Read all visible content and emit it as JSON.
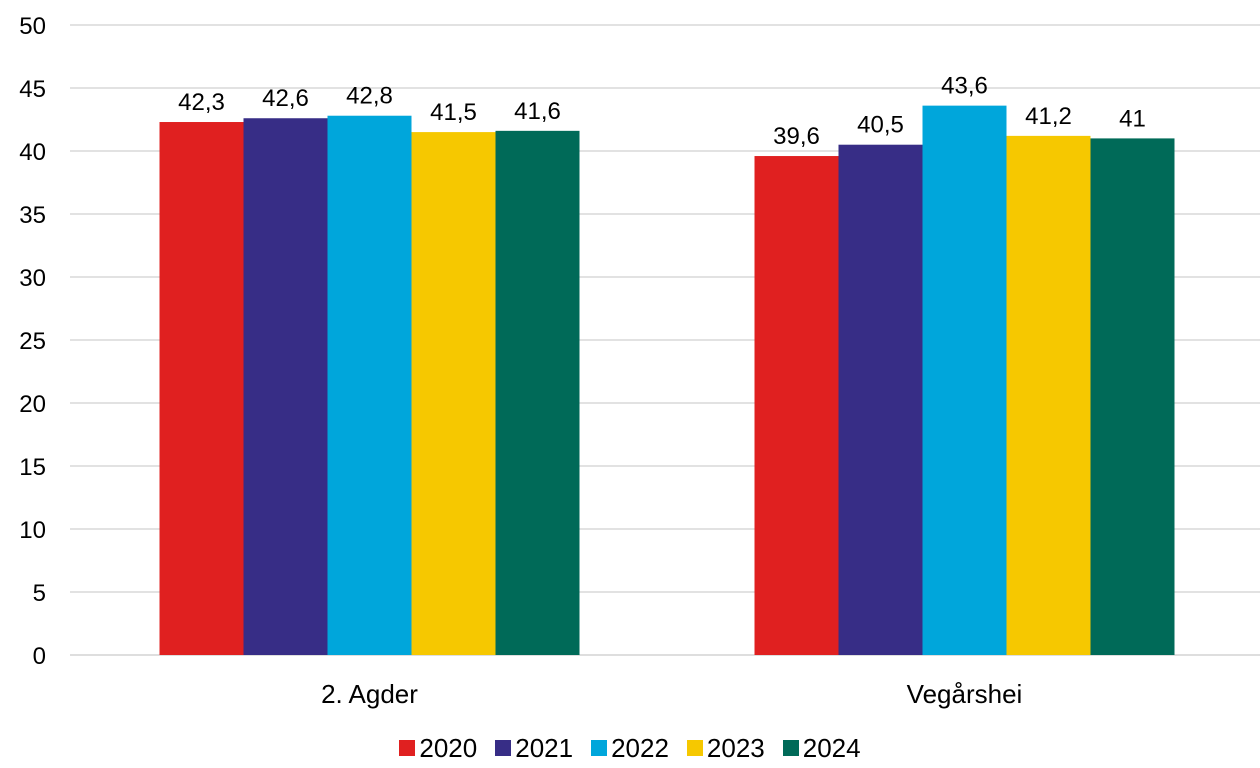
{
  "chart_data": {
    "type": "bar",
    "categories": [
      "2. Agder",
      "Vegårshei"
    ],
    "series": [
      {
        "name": "2020",
        "color": "#e02020",
        "values": [
          42.3,
          39.6
        ],
        "labels": [
          "42,3",
          "39,6"
        ]
      },
      {
        "name": "2021",
        "color": "#372d86",
        "values": [
          42.6,
          40.5
        ],
        "labels": [
          "42,6",
          "40,5"
        ]
      },
      {
        "name": "2022",
        "color": "#00a6db",
        "values": [
          42.8,
          43.6
        ],
        "labels": [
          "42,8",
          "43,6"
        ]
      },
      {
        "name": "2023",
        "color": "#f6c800",
        "values": [
          41.5,
          41.2
        ],
        "labels": [
          "41,5",
          "41,2"
        ]
      },
      {
        "name": "2024",
        "color": "#006a58",
        "values": [
          41.6,
          41.0
        ],
        "labels": [
          "41,6",
          "41"
        ]
      }
    ],
    "title": "",
    "xlabel": "",
    "ylabel": "",
    "ylim": [
      0,
      50
    ],
    "yticks": [
      0,
      5,
      10,
      15,
      20,
      25,
      30,
      35,
      40,
      45,
      50
    ],
    "grid": true,
    "legend_position": "bottom"
  }
}
